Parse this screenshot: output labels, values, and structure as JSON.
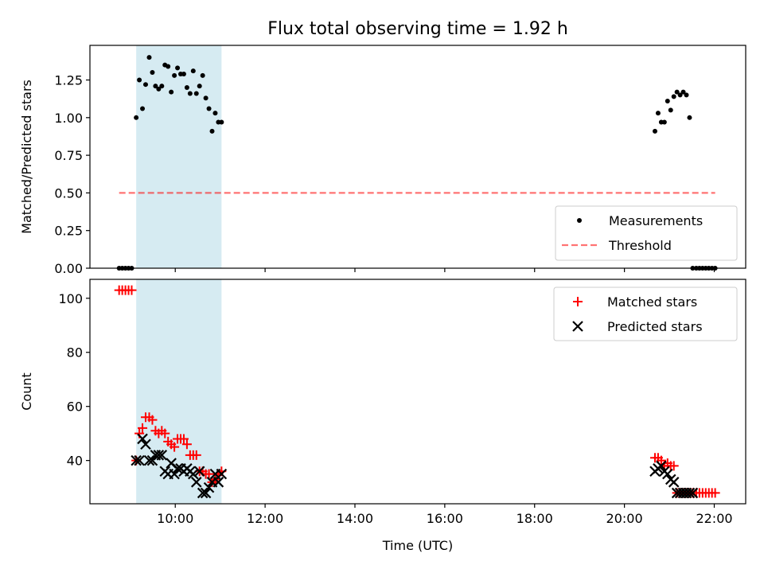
{
  "title": "Flux total observing time = 1.92 h",
  "colors": {
    "observing_band": "#add8e6",
    "measurement": "#000000",
    "threshold": "#ff0000",
    "matched": "#ff0000",
    "predicted": "#000000"
  },
  "chart_data": [
    {
      "type": "scatter",
      "ylabel": "Matched/Predicted stars",
      "xlim": [
        8.1,
        22.7
      ],
      "ylim": [
        0,
        1.48
      ],
      "yticks": [
        0.0,
        0.25,
        0.5,
        0.75,
        1.0,
        1.25
      ],
      "ytick_labels": [
        "0.00",
        "0.25",
        "0.50",
        "0.75",
        "1.00",
        "1.25"
      ],
      "xticks": [
        10,
        12,
        14,
        16,
        18,
        20,
        22
      ],
      "observing_band": [
        9.13,
        11.03
      ],
      "legend_position": "lower-right",
      "series": [
        {
          "name": "Measurements",
          "marker": "dot",
          "x": [
            8.75,
            8.82,
            8.89,
            8.96,
            9.03,
            9.13,
            9.2,
            9.27,
            9.34,
            9.42,
            9.49,
            9.56,
            9.63,
            9.7,
            9.77,
            9.84,
            9.91,
            9.98,
            10.05,
            10.12,
            10.19,
            10.26,
            10.33,
            10.4,
            10.47,
            10.54,
            10.61,
            10.68,
            10.75,
            10.82,
            10.89,
            10.96,
            11.03,
            20.68,
            20.75,
            20.82,
            20.89,
            20.96,
            21.03,
            21.1,
            21.17,
            21.24,
            21.31,
            21.38,
            21.45,
            21.52,
            21.6,
            21.67,
            21.74,
            21.81,
            21.88,
            21.95,
            22.02
          ],
          "y": [
            0.0,
            0.0,
            0.0,
            0.0,
            0.0,
            1.0,
            1.25,
            1.06,
            1.22,
            1.4,
            1.3,
            1.21,
            1.19,
            1.21,
            1.35,
            1.34,
            1.17,
            1.28,
            1.33,
            1.29,
            1.29,
            1.2,
            1.16,
            1.31,
            1.16,
            1.21,
            1.28,
            1.13,
            1.06,
            0.91,
            1.03,
            0.97,
            0.97,
            0.91,
            1.03,
            0.97,
            0.97,
            1.11,
            1.05,
            1.14,
            1.17,
            1.15,
            1.17,
            1.15,
            1.0,
            0.0,
            0.0,
            0.0,
            0.0,
            0.0,
            0.0,
            0.0,
            0.0
          ]
        },
        {
          "name": "Threshold",
          "style": "dashed",
          "x": [
            8.75,
            22.02
          ],
          "y": [
            0.5,
            0.5
          ]
        }
      ]
    },
    {
      "type": "scatter",
      "ylabel": "Count",
      "xlabel": "Time (UTC)",
      "xlim": [
        8.1,
        22.7
      ],
      "ylim": [
        24,
        107
      ],
      "yticks": [
        40,
        60,
        80,
        100
      ],
      "ytick_labels": [
        "40",
        "60",
        "80",
        "100"
      ],
      "xticks": [
        10,
        12,
        14,
        16,
        18,
        20,
        22
      ],
      "xtick_labels": [
        "10:00",
        "12:00",
        "14:00",
        "16:00",
        "18:00",
        "20:00",
        "22:00"
      ],
      "observing_band": [
        9.13,
        11.03
      ],
      "legend_position": "upper-right",
      "series": [
        {
          "name": "Matched stars",
          "marker": "plus",
          "x": [
            8.75,
            8.82,
            8.89,
            8.96,
            9.03,
            9.13,
            9.2,
            9.27,
            9.34,
            9.42,
            9.49,
            9.56,
            9.63,
            9.7,
            9.77,
            9.84,
            9.91,
            9.98,
            10.05,
            10.12,
            10.19,
            10.26,
            10.33,
            10.4,
            10.47,
            10.54,
            10.61,
            10.68,
            10.75,
            10.82,
            10.89,
            10.96,
            11.03,
            20.68,
            20.75,
            20.82,
            20.89,
            20.96,
            21.03,
            21.1,
            21.17,
            21.24,
            21.31,
            21.38,
            21.45,
            21.52,
            21.6,
            21.67,
            21.74,
            21.81,
            21.88,
            21.95,
            22.02
          ],
          "y": [
            103,
            103,
            103,
            103,
            103,
            40,
            50,
            52,
            56,
            56,
            55,
            51,
            50,
            51,
            50,
            47,
            46,
            45,
            48,
            48,
            48,
            46,
            42,
            42,
            42,
            36,
            36,
            35,
            35,
            32,
            33,
            35,
            36,
            41,
            41,
            40,
            38,
            39,
            38,
            38,
            28,
            28,
            28,
            28,
            28,
            28,
            28,
            28,
            28,
            28,
            28,
            28,
            28
          ]
        },
        {
          "name": "Predicted stars",
          "marker": "x",
          "x": [
            9.13,
            9.2,
            9.27,
            9.34,
            9.42,
            9.49,
            9.56,
            9.63,
            9.7,
            9.77,
            9.84,
            9.91,
            9.98,
            10.05,
            10.12,
            10.19,
            10.26,
            10.33,
            10.4,
            10.47,
            10.54,
            10.61,
            10.68,
            10.75,
            10.82,
            10.89,
            10.96,
            11.03,
            20.68,
            20.75,
            20.82,
            20.89,
            20.96,
            21.03,
            21.1,
            21.17,
            21.24,
            21.31,
            21.38,
            21.45,
            21.52
          ],
          "y": [
            40,
            40,
            48,
            46,
            40,
            40,
            42,
            42,
            42,
            36,
            35,
            39,
            35,
            37,
            37,
            36,
            37,
            36,
            35,
            32,
            36,
            28,
            28,
            30,
            32,
            35,
            32,
            35,
            36,
            37,
            38,
            36,
            35,
            33,
            32,
            28,
            28,
            28,
            28,
            28,
            28
          ]
        }
      ]
    }
  ]
}
